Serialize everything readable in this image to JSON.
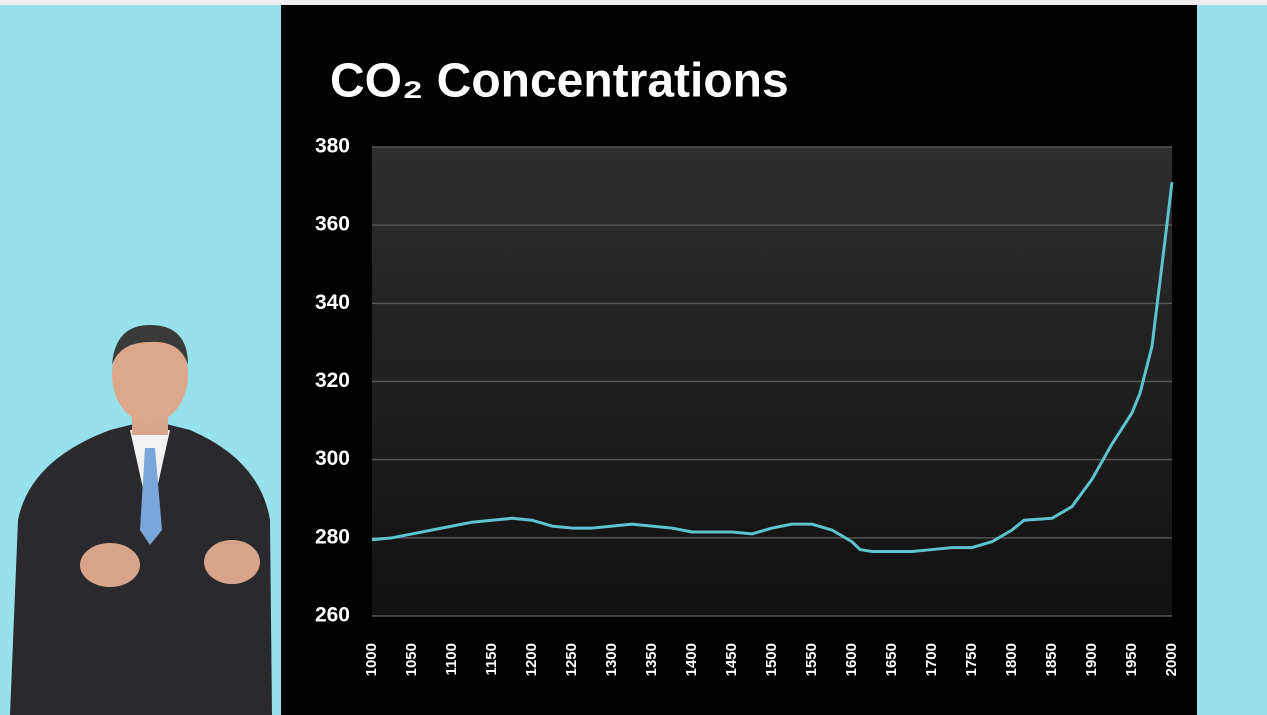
{
  "chart_data": {
    "type": "line",
    "title": "CO₂ Concentrations",
    "x": [
      1000,
      1025,
      1050,
      1075,
      1100,
      1125,
      1150,
      1175,
      1200,
      1225,
      1250,
      1275,
      1300,
      1325,
      1350,
      1375,
      1400,
      1425,
      1450,
      1475,
      1500,
      1525,
      1550,
      1575,
      1600,
      1610,
      1625,
      1650,
      1675,
      1700,
      1725,
      1750,
      1775,
      1800,
      1815,
      1850,
      1875,
      1900,
      1925,
      1950,
      1960,
      1975,
      1990,
      2000
    ],
    "series": [
      {
        "name": "CO2",
        "color": "#5cc3cf",
        "values": [
          279.5,
          280,
          281,
          282,
          283,
          284,
          284.5,
          285,
          284.5,
          283,
          282.5,
          282.5,
          283,
          283.5,
          283,
          282.5,
          281.5,
          281.5,
          281.5,
          281,
          282.5,
          283.5,
          283.5,
          282,
          279,
          277,
          276.5,
          276.5,
          276.5,
          277,
          277.5,
          277.5,
          279,
          282,
          284.5,
          285,
          288,
          295,
          304,
          312,
          317,
          329,
          354,
          371
        ]
      }
    ],
    "xlim": [
      1000,
      2000
    ],
    "xticks": [
      1000,
      1050,
      1100,
      1150,
      1200,
      1250,
      1300,
      1350,
      1400,
      1450,
      1500,
      1550,
      1600,
      1650,
      1700,
      1750,
      1800,
      1850,
      1900,
      1950,
      2000
    ],
    "ylim": [
      260,
      380
    ],
    "yticks": [
      260,
      280,
      300,
      320,
      340,
      360,
      380
    ],
    "grid": true
  }
}
